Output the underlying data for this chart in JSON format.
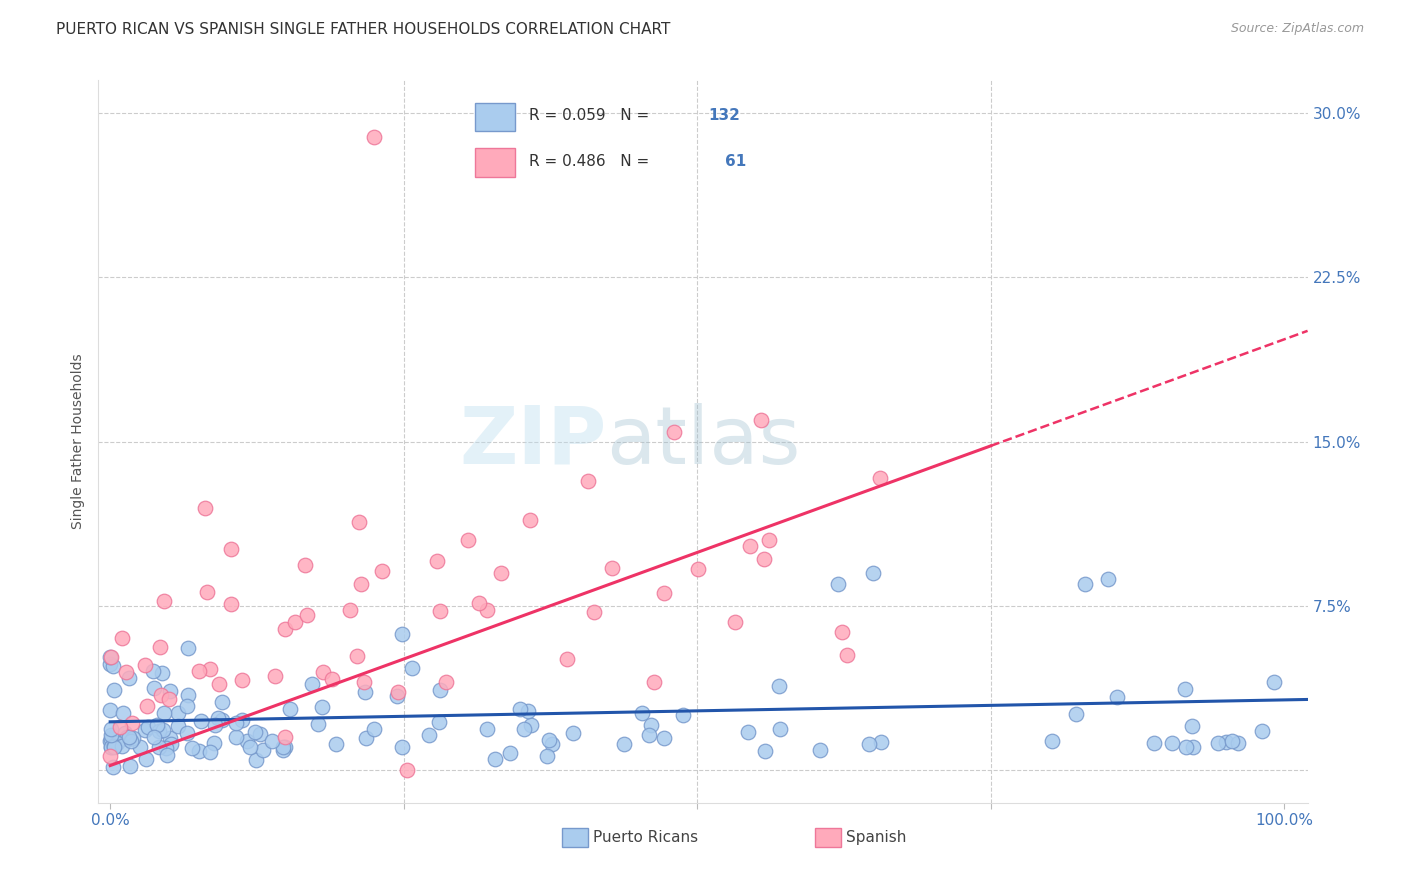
{
  "title": "PUERTO RICAN VS SPANISH SINGLE FATHER HOUSEHOLDS CORRELATION CHART",
  "source": "Source: ZipAtlas.com",
  "ylabel": "Single Father Households",
  "ytick_values": [
    0.0,
    0.075,
    0.15,
    0.225,
    0.3
  ],
  "xtick_values": [
    0.0,
    0.25,
    0.5,
    0.75,
    1.0
  ],
  "xlim": [
    -0.01,
    1.02
  ],
  "ylim": [
    -0.015,
    0.315
  ],
  "blue_scatter_face": "#AACCEE",
  "blue_scatter_edge": "#7799CC",
  "pink_scatter_face": "#FFAABB",
  "pink_scatter_edge": "#EE7799",
  "blue_line_color": "#2255AA",
  "pink_line_color": "#EE3366",
  "grid_color": "#CCCCCC",
  "background_color": "#FFFFFF",
  "R_blue": 0.059,
  "N_blue": 132,
  "R_pink": 0.486,
  "N_pink": 61,
  "watermark_zip": "ZIP",
  "watermark_atlas": "atlas",
  "legend_label_blue": "Puerto Ricans",
  "legend_label_pink": "Spanish",
  "title_fontsize": 11,
  "axis_label_fontsize": 10,
  "tick_fontsize": 11,
  "legend_fontsize": 12,
  "blue_tick_color": "#4477BB",
  "right_tick_color": "#4477BB"
}
